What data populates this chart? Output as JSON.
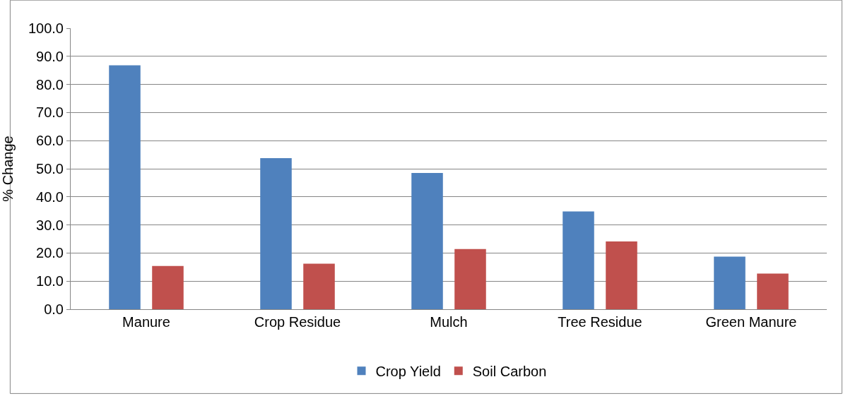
{
  "chart_data": {
    "type": "bar",
    "ylabel": "% Change",
    "categories": [
      "Manure",
      "Crop Residue",
      "Mulch",
      "Tree Residue",
      "Green Manure"
    ],
    "series": [
      {
        "name": "Crop Yield",
        "color": "#4f81bd",
        "values": [
          86.8,
          53.8,
          48.5,
          34.8,
          18.7
        ]
      },
      {
        "name": "Soil Carbon",
        "color": "#c0504d",
        "values": [
          15.4,
          16.2,
          21.4,
          24.1,
          12.7
        ]
      }
    ],
    "ylim": [
      0,
      100
    ],
    "yticks": [
      {
        "value": 0,
        "label": "0.0"
      },
      {
        "value": 10,
        "label": "10.0"
      },
      {
        "value": 20,
        "label": "20.0"
      },
      {
        "value": 30,
        "label": "30.0"
      },
      {
        "value": 40,
        "label": "40.0"
      },
      {
        "value": 50,
        "label": "50.0"
      },
      {
        "value": 60,
        "label": "60.0"
      },
      {
        "value": 70,
        "label": "70.0"
      },
      {
        "value": 80,
        "label": "80.0"
      },
      {
        "value": 90,
        "label": "90.0"
      },
      {
        "value": 100,
        "label": "100.0"
      }
    ],
    "grid": "y",
    "legend": "bottom"
  }
}
